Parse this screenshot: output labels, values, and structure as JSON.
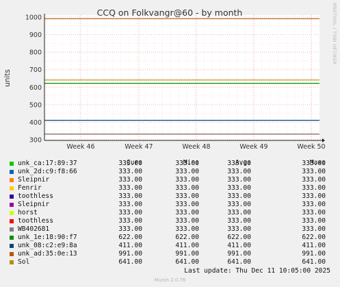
{
  "chart_data": {
    "type": "line",
    "title": "CCQ on Folkvangr@60 - by month",
    "ylabel": "units",
    "ylim": [
      300,
      1000
    ],
    "yticks": [
      300,
      400,
      500,
      600,
      700,
      800,
      900,
      1000
    ],
    "xticks": [
      "Week 46",
      "Week 47",
      "Week 48",
      "Week 49",
      "Week 50"
    ],
    "grid": true,
    "legend_placement": "bottom",
    "columns": [
      "Cur:",
      "Min:",
      "Avg:",
      "Max:"
    ],
    "series": [
      {
        "name": "unk_ca:17:89:37",
        "color": "#00cc00",
        "cur": "333.00",
        "min": "333.00",
        "avg": "333.00",
        "max": "333.00",
        "value": 333
      },
      {
        "name": "unk_2d:c9:f8:66",
        "color": "#0066b3",
        "cur": "333.00",
        "min": "333.00",
        "avg": "333.00",
        "max": "333.00",
        "value": 333
      },
      {
        "name": "Sleipnir",
        "color": "#ff8000",
        "cur": "333.00",
        "min": "333.00",
        "avg": "333.00",
        "max": "333.00",
        "value": 333
      },
      {
        "name": "Fenrir",
        "color": "#ffcc00",
        "cur": "333.00",
        "min": "333.00",
        "avg": "333.00",
        "max": "333.00",
        "value": 333
      },
      {
        "name": "toothless",
        "color": "#330099",
        "cur": "333.00",
        "min": "333.00",
        "avg": "333.00",
        "max": "333.00",
        "value": 333
      },
      {
        "name": "Sleipnir",
        "color": "#990099",
        "cur": "333.00",
        "min": "333.00",
        "avg": "333.00",
        "max": "333.00",
        "value": 333
      },
      {
        "name": "horst",
        "color": "#ccff00",
        "cur": "333.00",
        "min": "333.00",
        "avg": "333.00",
        "max": "333.00",
        "value": 333
      },
      {
        "name": "toothless",
        "color": "#ff0000",
        "cur": "333.00",
        "min": "333.00",
        "avg": "333.00",
        "max": "333.00",
        "value": 333
      },
      {
        "name": "WB402681",
        "color": "#808080",
        "cur": "333.00",
        "min": "333.00",
        "avg": "333.00",
        "max": "333.00",
        "value": 333
      },
      {
        "name": "unk_1e:18:90:f7",
        "color": "#008f00",
        "cur": "622.00",
        "min": "622.00",
        "avg": "622.00",
        "max": "622.00",
        "value": 622
      },
      {
        "name": "unk_08:c2:e9:8a",
        "color": "#00487d",
        "cur": "411.00",
        "min": "411.00",
        "avg": "411.00",
        "max": "411.00",
        "value": 411
      },
      {
        "name": "unk_ad:35:0e:13",
        "color": "#b35a00",
        "cur": "991.00",
        "min": "991.00",
        "avg": "991.00",
        "max": "991.00",
        "value": 991
      },
      {
        "name": "Sol",
        "color": "#b38f00",
        "cur": "641.00",
        "min": "641.00",
        "avg": "641.00",
        "max": "641.00",
        "value": 641
      }
    ]
  },
  "footer": {
    "last_update": "Last update: Thu Dec 11 10:05:00 2025",
    "version": "Munin 2.0.76"
  },
  "side_label": "RRDTOOL / TOBI OETIKER"
}
